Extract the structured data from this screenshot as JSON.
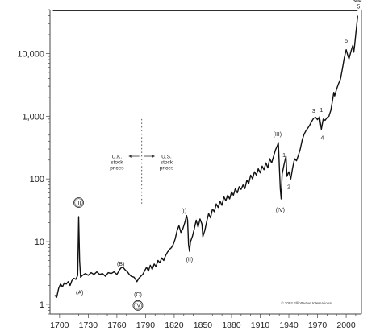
{
  "chart_data": {
    "type": "line",
    "y_scale": "log",
    "ylim": [
      0.7,
      50000
    ],
    "xlim": [
      1690,
      2016
    ],
    "y_ticks": [
      {
        "value": 1,
        "label": "1"
      },
      {
        "value": 10,
        "label": "10"
      },
      {
        "value": 100,
        "label": "100"
      },
      {
        "value": 1000,
        "label": "1,000"
      },
      {
        "value": 10000,
        "label": "10,000"
      }
    ],
    "x_ticks": [
      {
        "value": 1700,
        "label": "1700",
        "color": "#b8a020"
      },
      {
        "value": 1730,
        "label": "1730"
      },
      {
        "value": 1760,
        "label": "1760"
      },
      {
        "value": 1790,
        "label": "1790"
      },
      {
        "value": 1820,
        "label": "1820"
      },
      {
        "value": 1850,
        "label": "1850"
      },
      {
        "value": 1880,
        "label": "1880"
      },
      {
        "value": 1910,
        "label": "1910"
      },
      {
        "value": 1940,
        "label": "1940"
      },
      {
        "value": 1970,
        "label": "1970"
      },
      {
        "value": 2000,
        "label": "2000"
      }
    ],
    "grid": false,
    "series": [
      {
        "color": "#111111",
        "points": [
          [
            1695,
            1.4
          ],
          [
            1697,
            1.3
          ],
          [
            1699,
            1.8
          ],
          [
            1701,
            2.1
          ],
          [
            1703,
            1.9
          ],
          [
            1705,
            2.2
          ],
          [
            1707,
            2.1
          ],
          [
            1709,
            2.3
          ],
          [
            1711,
            2.0
          ],
          [
            1713,
            2.4
          ],
          [
            1715,
            2.6
          ],
          [
            1717,
            2.5
          ],
          [
            1719,
            2.9
          ],
          [
            1720,
            25
          ],
          [
            1721,
            5.0
          ],
          [
            1722,
            2.7
          ],
          [
            1724,
            2.9
          ],
          [
            1727,
            3.1
          ],
          [
            1730,
            2.9
          ],
          [
            1733,
            3.2
          ],
          [
            1736,
            3.0
          ],
          [
            1739,
            3.3
          ],
          [
            1742,
            3.0
          ],
          [
            1745,
            3.1
          ],
          [
            1748,
            2.8
          ],
          [
            1751,
            3.2
          ],
          [
            1754,
            3.1
          ],
          [
            1757,
            3.3
          ],
          [
            1760,
            3.0
          ],
          [
            1763,
            3.6
          ],
          [
            1765,
            3.9
          ],
          [
            1767,
            3.8
          ],
          [
            1769,
            3.5
          ],
          [
            1771,
            3.3
          ],
          [
            1773,
            3.0
          ],
          [
            1775,
            2.8
          ],
          [
            1778,
            2.7
          ],
          [
            1781,
            2.3
          ],
          [
            1783,
            2.6
          ],
          [
            1785,
            2.8
          ],
          [
            1787,
            3.0
          ],
          [
            1789,
            3.4
          ],
          [
            1791,
            3.9
          ],
          [
            1793,
            3.4
          ],
          [
            1795,
            4.2
          ],
          [
            1797,
            3.6
          ],
          [
            1799,
            4.4
          ],
          [
            1801,
            4.0
          ],
          [
            1803,
            5.0
          ],
          [
            1805,
            4.6
          ],
          [
            1807,
            5.5
          ],
          [
            1809,
            5.0
          ],
          [
            1811,
            6.0
          ],
          [
            1813,
            6.8
          ],
          [
            1815,
            7.5
          ],
          [
            1817,
            8.0
          ],
          [
            1819,
            9.0
          ],
          [
            1821,
            11
          ],
          [
            1823,
            15
          ],
          [
            1825,
            18
          ],
          [
            1827,
            14
          ],
          [
            1829,
            16
          ],
          [
            1831,
            20
          ],
          [
            1833,
            26
          ],
          [
            1834,
            22
          ],
          [
            1835,
            9
          ],
          [
            1836,
            7
          ],
          [
            1837,
            10
          ],
          [
            1839,
            12
          ],
          [
            1841,
            16
          ],
          [
            1843,
            22
          ],
          [
            1845,
            17
          ],
          [
            1847,
            23
          ],
          [
            1849,
            19
          ],
          [
            1850,
            12
          ],
          [
            1852,
            15
          ],
          [
            1854,
            21
          ],
          [
            1856,
            28
          ],
          [
            1858,
            24
          ],
          [
            1860,
            33
          ],
          [
            1862,
            30
          ],
          [
            1864,
            40
          ],
          [
            1866,
            35
          ],
          [
            1868,
            44
          ],
          [
            1870,
            38
          ],
          [
            1872,
            52
          ],
          [
            1874,
            45
          ],
          [
            1876,
            55
          ],
          [
            1878,
            48
          ],
          [
            1880,
            62
          ],
          [
            1882,
            55
          ],
          [
            1884,
            70
          ],
          [
            1886,
            60
          ],
          [
            1888,
            75
          ],
          [
            1890,
            68
          ],
          [
            1892,
            80
          ],
          [
            1894,
            70
          ],
          [
            1896,
            95
          ],
          [
            1898,
            85
          ],
          [
            1900,
            115
          ],
          [
            1902,
            100
          ],
          [
            1904,
            130
          ],
          [
            1906,
            115
          ],
          [
            1908,
            145
          ],
          [
            1910,
            125
          ],
          [
            1912,
            160
          ],
          [
            1914,
            140
          ],
          [
            1916,
            180
          ],
          [
            1918,
            150
          ],
          [
            1920,
            210
          ],
          [
            1922,
            180
          ],
          [
            1924,
            230
          ],
          [
            1926,
            290
          ],
          [
            1928,
            340
          ],
          [
            1929,
            380
          ],
          [
            1930,
            160
          ],
          [
            1931,
            70
          ],
          [
            1932,
            48
          ],
          [
            1933,
            120
          ],
          [
            1935,
            170
          ],
          [
            1937,
            230
          ],
          [
            1938,
            110
          ],
          [
            1940,
            130
          ],
          [
            1942,
            100
          ],
          [
            1944,
            150
          ],
          [
            1946,
            210
          ],
          [
            1948,
            195
          ],
          [
            1950,
            240
          ],
          [
            1952,
            300
          ],
          [
            1954,
            420
          ],
          [
            1956,
            520
          ],
          [
            1958,
            590
          ],
          [
            1960,
            650
          ],
          [
            1962,
            730
          ],
          [
            1964,
            830
          ],
          [
            1966,
            930
          ],
          [
            1968,
            960
          ],
          [
            1970,
            880
          ],
          [
            1972,
            980
          ],
          [
            1974,
            620
          ],
          [
            1976,
            900
          ],
          [
            1978,
            860
          ],
          [
            1980,
            950
          ],
          [
            1982,
            1000
          ],
          [
            1984,
            1250
          ],
          [
            1986,
            1900
          ],
          [
            1987,
            2400
          ],
          [
            1988,
            2100
          ],
          [
            1990,
            2700
          ],
          [
            1992,
            3300
          ],
          [
            1994,
            3900
          ],
          [
            1996,
            5600
          ],
          [
            1998,
            8500
          ],
          [
            2000,
            11500
          ],
          [
            2002,
            9000
          ],
          [
            2003,
            8200
          ],
          [
            2005,
            10800
          ],
          [
            2007,
            13500
          ],
          [
            2008,
            10500
          ],
          [
            2009,
            14000
          ],
          [
            2010,
            20000
          ],
          [
            2011,
            28000
          ],
          [
            2012,
            40000
          ]
        ]
      }
    ],
    "reference_lines": [
      {
        "orientation": "horizontal",
        "value": 48000,
        "from": 1693,
        "to": 2012,
        "color": "#111111"
      }
    ],
    "annotations": [
      {
        "text": "III",
        "x": 1720,
        "y": 42,
        "circled": true
      },
      {
        "text": "(A)",
        "x": 1721,
        "y": 1.55
      },
      {
        "text": "(B)",
        "x": 1764,
        "y": 4.4
      },
      {
        "text": "(C)",
        "x": 1782,
        "y": 1.45
      },
      {
        "text": "IV",
        "x": 1782,
        "y": 0.96,
        "circled": true
      },
      {
        "text": "(I)",
        "x": 1830,
        "y": 31
      },
      {
        "text": "(II)",
        "x": 1836,
        "y": 5.2
      },
      {
        "text": "(III)",
        "x": 1928,
        "y": 520
      },
      {
        "text": "1",
        "x": 1935,
        "y": 240
      },
      {
        "text": "(IV)",
        "x": 1931,
        "y": 32
      },
      {
        "text": "2",
        "x": 1940,
        "y": 75
      },
      {
        "text": "3",
        "x": 1966,
        "y": 1220
      },
      {
        "text": "1",
        "x": 1974,
        "y": 1250
      },
      {
        "text": "4",
        "x": 1975,
        "y": 450
      },
      {
        "text": "5",
        "x": 2000,
        "y": 16000
      },
      {
        "text": "V",
        "x": 2012,
        "y": 80000,
        "circled": true
      },
      {
        "text": "5",
        "x": 2013,
        "y": 56000
      }
    ],
    "notes": [
      {
        "lines": [
          "U.K.",
          "stock",
          "prices"
        ],
        "x": 1760,
        "y": 180
      },
      {
        "lines": [
          "U.S.",
          "stock",
          "prices"
        ],
        "x": 1812,
        "y": 180
      }
    ],
    "credit": "© 2002 Elliottwave International"
  }
}
